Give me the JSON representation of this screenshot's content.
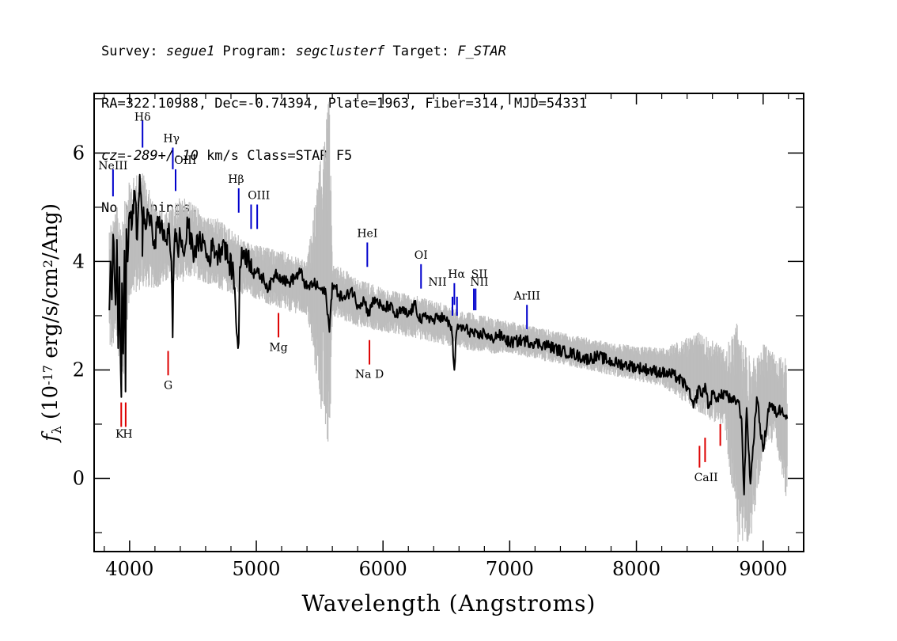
{
  "header": {
    "line1": {
      "a": "Survey: ",
      "survey": "segue1",
      "b": " Program: ",
      "program": "segclusterf",
      "c": " Target: ",
      "target": "F_STAR"
    },
    "line2": "RA=322.10988, Dec=-0.74394, Plate=1963, Fiber=314, MJD=54331",
    "line3": {
      "cz": "cz=-289+/-10",
      "rest": " km/s Class=STAR F5"
    },
    "line4": "No warnings."
  },
  "chart_data": {
    "type": "line",
    "xlabel": "Wavelength (Angstroms)",
    "ylabel": "f_λ (10^-17 erg/s/cm^2/Ang)",
    "xlim": [
      3720,
      9320
    ],
    "ylim": [
      -1.35,
      7.1
    ],
    "x_ticks": [
      4000,
      5000,
      6000,
      7000,
      8000,
      9000
    ],
    "x_tick_labels": [
      "4000",
      "5000",
      "6000",
      "7000",
      "8000",
      "9000"
    ],
    "y_ticks": [
      0,
      2,
      4,
      6
    ],
    "y_tick_labels": [
      "0",
      "2",
      "4",
      "6"
    ],
    "grid": false,
    "colors": {
      "flux": "#000000",
      "error_band": "#bdbdbd",
      "emission": "#0000cc",
      "absorption": "#dd0000"
    },
    "series": [
      {
        "name": "flux",
        "x": [
          3840,
          3850,
          3860,
          3870,
          3880,
          3890,
          3900,
          3910,
          3920,
          3930,
          3935,
          3940,
          3950,
          3960,
          3968,
          3975,
          3985,
          4000,
          4020,
          4040,
          4060,
          4080,
          4100,
          4101,
          4110,
          4130,
          4150,
          4180,
          4200,
          4230,
          4260,
          4290,
          4310,
          4330,
          4340,
          4345,
          4360,
          4380,
          4400,
          4430,
          4460,
          4500,
          4540,
          4580,
          4620,
          4660,
          4700,
          4740,
          4780,
          4820,
          4850,
          4861,
          4870,
          4900,
          4950,
          5000,
          5050,
          5100,
          5150,
          5200,
          5250,
          5300,
          5350,
          5400,
          5450,
          5500,
          5550,
          5577,
          5600,
          5650,
          5700,
          5750,
          5800,
          5850,
          5890,
          5900,
          5950,
          6000,
          6050,
          6100,
          6150,
          6200,
          6250,
          6300,
          6350,
          6400,
          6450,
          6500,
          6540,
          6563,
          6580,
          6600,
          6650,
          6700,
          6750,
          6800,
          6850,
          6900,
          6950,
          7000,
          7100,
          7200,
          7300,
          7400,
          7500,
          7600,
          7700,
          7800,
          7900,
          8000,
          8100,
          8200,
          8300,
          8400,
          8450,
          8498,
          8520,
          8542,
          8570,
          8600,
          8640,
          8662,
          8700,
          8750,
          8800,
          8830,
          8850,
          8870,
          8900,
          8950,
          9000,
          9050,
          9100,
          9150,
          9190
        ],
        "values": [
          3.1,
          4.0,
          3.3,
          4.5,
          3.8,
          3.2,
          4.4,
          2.4,
          3.9,
          2.0,
          1.5,
          3.6,
          2.3,
          4.2,
          1.6,
          4.6,
          4.0,
          4.9,
          4.7,
          5.3,
          4.4,
          5.6,
          4.8,
          4.1,
          5.0,
          4.6,
          4.9,
          4.5,
          4.4,
          4.8,
          4.5,
          4.4,
          4.7,
          4.0,
          2.6,
          3.6,
          4.6,
          4.2,
          4.5,
          4.1,
          4.7,
          4.2,
          4.3,
          4.4,
          4.0,
          4.3,
          4.1,
          4.4,
          4.0,
          3.8,
          2.6,
          2.5,
          3.9,
          4.2,
          4.0,
          3.8,
          3.7,
          3.5,
          3.8,
          3.7,
          3.6,
          3.7,
          3.8,
          3.5,
          3.6,
          3.5,
          3.4,
          2.7,
          3.6,
          3.4,
          3.3,
          3.5,
          3.2,
          3.3,
          3.0,
          3.2,
          3.3,
          3.1,
          3.2,
          3.0,
          3.1,
          3.0,
          3.2,
          2.9,
          3.0,
          2.9,
          3.0,
          2.9,
          2.8,
          2.0,
          2.7,
          2.8,
          2.75,
          2.7,
          2.6,
          2.7,
          2.55,
          2.65,
          2.6,
          2.5,
          2.55,
          2.5,
          2.45,
          2.35,
          2.3,
          2.2,
          2.25,
          2.15,
          2.1,
          2.05,
          2.0,
          1.95,
          1.9,
          1.7,
          1.3,
          1.7,
          1.5,
          1.75,
          1.3,
          1.55,
          1.5,
          1.5,
          1.6,
          1.4,
          1.45,
          1.1,
          -0.3,
          1.3,
          -0.1,
          1.5,
          0.5,
          1.4,
          1.2,
          1.3,
          1.1
        ]
      }
    ],
    "error_band": {
      "x": [
        3840,
        3900,
        3950,
        4000,
        4100,
        4200,
        4300,
        4400,
        4500,
        4600,
        4700,
        4800,
        4900,
        5000,
        5200,
        5400,
        5577,
        5600,
        5800,
        6000,
        6200,
        6400,
        6600,
        6800,
        7000,
        7400,
        7800,
        8200,
        8500,
        8700,
        8800,
        8900,
        9000,
        9100,
        9190
      ],
      "lower": [
        2.3,
        2.4,
        1.8,
        3.3,
        3.5,
        3.5,
        3.6,
        3.6,
        3.7,
        3.6,
        3.5,
        3.4,
        3.4,
        3.3,
        3.1,
        3.0,
        0.2,
        3.0,
        2.8,
        2.7,
        2.6,
        2.5,
        2.4,
        2.3,
        2.3,
        2.1,
        1.9,
        1.7,
        1.2,
        0.9,
        -1.2,
        -1.2,
        0.5,
        0.7,
        -0.5
      ],
      "upper": [
        4.8,
        5.0,
        5.0,
        5.5,
        5.7,
        5.0,
        4.9,
        5.2,
        5.1,
        4.8,
        4.8,
        4.6,
        4.4,
        4.3,
        4.2,
        4.0,
        7.1,
        4.0,
        3.7,
        3.5,
        3.4,
        3.3,
        3.1,
        3.0,
        2.9,
        2.7,
        2.5,
        2.4,
        2.7,
        2.4,
        2.9,
        2.2,
        2.5,
        2.3,
        2.2
      ]
    },
    "emission_lines": [
      {
        "label": "NeIII",
        "x": 3869,
        "y1": 5.2,
        "y2": 5.7
      },
      {
        "label": "Hδ",
        "x": 4102,
        "y1": 6.1,
        "y2": 6.6
      },
      {
        "label": "Hγ",
        "x": 4341,
        "y1": 5.7,
        "y2": 6.1
      },
      {
        "label": "OIII",
        "x": 4363,
        "y1": 5.3,
        "y2": 5.7
      },
      {
        "label": "Hβ",
        "x": 4861,
        "y1": 4.9,
        "y2": 5.35
      },
      {
        "label": "OIII",
        "x": 4959,
        "y1": 4.6,
        "y2": 5.05
      },
      {
        "label": "OIII",
        "x": 5007,
        "y1": 4.6,
        "y2": 5.05
      },
      {
        "label": "HeI",
        "x": 5876,
        "y1": 3.9,
        "y2": 4.35
      },
      {
        "label": "OI",
        "x": 6300,
        "y1": 3.5,
        "y2": 3.95
      },
      {
        "label": "NII",
        "x": 6548,
        "y1": 3.0,
        "y2": 3.35
      },
      {
        "label": "Hα",
        "x": 6563,
        "y1": 3.2,
        "y2": 3.6
      },
      {
        "label": "NII",
        "x": 6584,
        "y1": 3.0,
        "y2": 3.35
      },
      {
        "label": "SII",
        "x": 6717,
        "y1": 3.1,
        "y2": 3.5
      },
      {
        "label": "SII",
        "x": 6731,
        "y1": 3.1,
        "y2": 3.5
      },
      {
        "label": "ArIII",
        "x": 7136,
        "y1": 2.75,
        "y2": 3.2
      }
    ],
    "emission_labels": [
      {
        "text": "NeIII",
        "x": 3869,
        "y": 5.7
      },
      {
        "text": "Hδ",
        "x": 4102,
        "y": 6.6
      },
      {
        "text": "Hγ",
        "x": 4330,
        "y": 6.2
      },
      {
        "text": "OIII",
        "x": 4440,
        "y": 5.8
      },
      {
        "text": "Hβ",
        "x": 4840,
        "y": 5.45
      },
      {
        "text": "OIII",
        "x": 5020,
        "y": 5.15
      },
      {
        "text": "HeI",
        "x": 5876,
        "y": 4.45
      },
      {
        "text": "OI",
        "x": 6300,
        "y": 4.05
      },
      {
        "text": "NII",
        "x": 6430,
        "y": 3.55
      },
      {
        "text": "Hα",
        "x": 6580,
        "y": 3.7
      },
      {
        "text": "SII",
        "x": 6760,
        "y": 3.7
      },
      {
        "text": "NII",
        "x": 6760,
        "y": 3.55
      },
      {
        "text": "ArIII",
        "x": 7136,
        "y": 3.3
      }
    ],
    "absorption_lines": [
      {
        "label": "K",
        "x": 3934,
        "y1": 0.95,
        "y2": 1.4
      },
      {
        "label": "H",
        "x": 3969,
        "y1": 0.95,
        "y2": 1.4
      },
      {
        "label": "G",
        "x": 4304,
        "y1": 1.9,
        "y2": 2.35
      },
      {
        "label": "Mg",
        "x": 5175,
        "y1": 2.6,
        "y2": 3.05
      },
      {
        "label": "Na D",
        "x": 5893,
        "y1": 2.1,
        "y2": 2.55
      },
      {
        "label": "CaII",
        "x": 8498,
        "y1": 0.2,
        "y2": 0.6
      },
      {
        "label": "CaII",
        "x": 8542,
        "y1": 0.3,
        "y2": 0.75
      },
      {
        "label": "CaII",
        "x": 8662,
        "y1": 0.6,
        "y2": 1.0
      }
    ],
    "absorption_labels": [
      {
        "text": "K",
        "x": 3921,
        "y": 0.75
      },
      {
        "text": "H",
        "x": 3985,
        "y": 0.75
      },
      {
        "text": "G",
        "x": 4304,
        "y": 1.65
      },
      {
        "text": "Mg",
        "x": 5175,
        "y": 2.35
      },
      {
        "text": "Na D",
        "x": 5893,
        "y": 1.85
      },
      {
        "text": "CaII",
        "x": 8550,
        "y": -0.05
      }
    ]
  }
}
